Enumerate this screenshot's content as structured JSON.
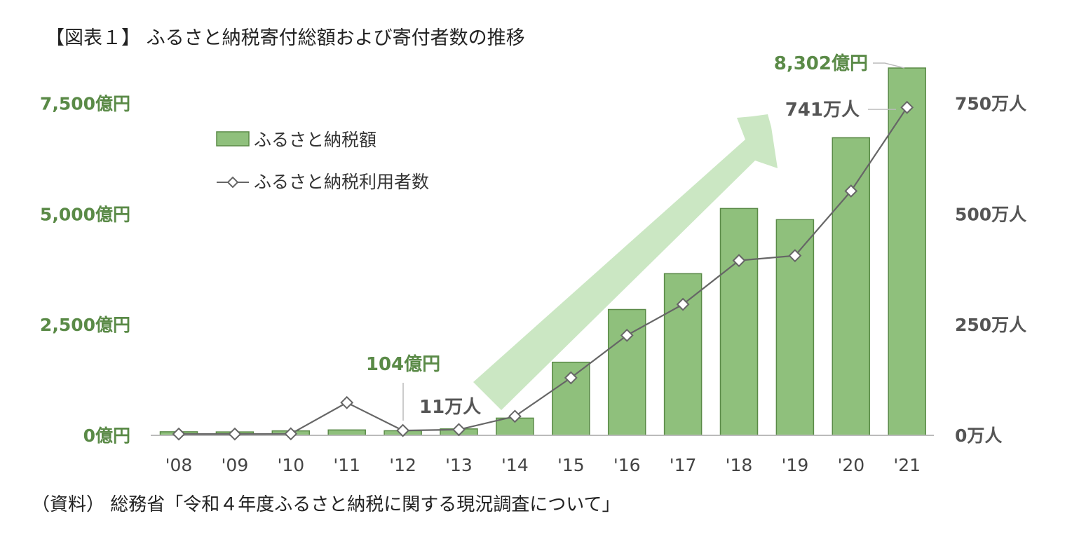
{
  "title": "【図表１】 ふるさと納税寄付総額および寄付者数の推移",
  "source": "（資料） 総務省「令和４年度ふるさと納税に関する現況調査について」",
  "colors": {
    "bar_fill": "#8fc07c",
    "bar_stroke": "#5a8a47",
    "line": "#666666",
    "marker_fill": "#ffffff",
    "arrow": "#c8e6c0",
    "left_axis_text": "#5a8a47",
    "right_axis_text": "#555555"
  },
  "chart_data": {
    "type": "bar+line",
    "categories": [
      "'08",
      "'09",
      "'10",
      "'11",
      "'12",
      "'13",
      "'14",
      "'15",
      "'16",
      "'17",
      "'18",
      "'19",
      "'20",
      "'21"
    ],
    "series": [
      {
        "name": "ふるさと納税額",
        "type": "bar",
        "axis": "left",
        "unit": "億円",
        "values": [
          81,
          77,
          102,
          122,
          104,
          146,
          389,
          1653,
          2844,
          3653,
          5127,
          4875,
          6725,
          8302
        ]
      },
      {
        "name": "ふるさと納税利用者数",
        "type": "line",
        "axis": "right",
        "unit": "万人",
        "marker": "diamond",
        "values": [
          3,
          3,
          3.5,
          74,
          11,
          13,
          43,
          130,
          226,
          296,
          395,
          406,
          552,
          741
        ]
      }
    ],
    "y_left": {
      "ylim": [
        0,
        8302
      ],
      "ticks": [
        0,
        2500,
        5000,
        7500
      ],
      "tick_labels": [
        "0億円",
        "2,500億円",
        "5,000億円",
        "7,500億円"
      ]
    },
    "y_right": {
      "ylim": [
        0,
        830
      ],
      "ticks": [
        0,
        250,
        500,
        750
      ],
      "tick_labels": [
        "0万人",
        "250万人",
        "500万人",
        "750万人"
      ]
    },
    "annotations": {
      "bar_2012": "104億円",
      "line_2012": "11万人",
      "bar_2021": "8,302億円",
      "line_2021": "741万人"
    },
    "legend_position": "top-left",
    "grid": false
  }
}
